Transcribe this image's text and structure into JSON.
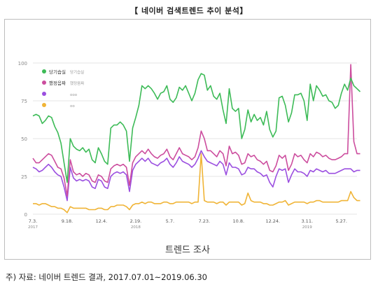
{
  "figure": {
    "title": "【 네이버 검색트렌드 추이 분석】",
    "caption": "트렌드 조사",
    "source": "주) 자료: 네이버 트렌드 결과, 2017.07.01~2019.06.30"
  },
  "colors": {
    "series1": "#3dbb57",
    "series2": "#cc4d9e",
    "series3": "#9b4fe0",
    "series4": "#f0b436",
    "grid": "#e6e6e6",
    "axis_text": "#888888"
  },
  "chart_data": {
    "type": "line",
    "title": "",
    "xlabel": "",
    "ylabel": "",
    "ylim": [
      0,
      100
    ],
    "yticks": [
      0,
      25,
      50,
      75,
      100
    ],
    "grid": "horizontal",
    "legend_position": "top-left",
    "x_ticks": [
      {
        "label": "7.3.",
        "sub": "2017",
        "week": 0
      },
      {
        "label": "9.18.",
        "sub": "",
        "week": 11
      },
      {
        "label": "12.4.",
        "sub": "",
        "week": 22
      },
      {
        "label": "2.19.",
        "sub": "2018",
        "week": 33
      },
      {
        "label": "5.7.",
        "sub": "",
        "week": 44
      },
      {
        "label": "7.23.",
        "sub": "",
        "week": 55
      },
      {
        "label": "10.8.",
        "sub": "",
        "week": 66
      },
      {
        "label": "12.24.",
        "sub": "",
        "week": 77
      },
      {
        "label": "3.11.",
        "sub": "2019",
        "week": 88
      },
      {
        "label": "5.27.",
        "sub": "",
        "week": 99
      }
    ],
    "x_range": [
      0,
      104
    ],
    "series": [
      {
        "name": "당기습실",
        "values": [
          65,
          66,
          65,
          60,
          62,
          65,
          64,
          58,
          54,
          47,
          34,
          21,
          50,
          45,
          43,
          42,
          44,
          41,
          43,
          36,
          34,
          44,
          40,
          35,
          33,
          57,
          59,
          59,
          61,
          59,
          55,
          35,
          57,
          64,
          72,
          85,
          83,
          85,
          83,
          80,
          76,
          80,
          81,
          85,
          76,
          74,
          77,
          84,
          82,
          85,
          80,
          75,
          80,
          89,
          93,
          92,
          82,
          85,
          78,
          76,
          80,
          69,
          60,
          83,
          70,
          68,
          70,
          50,
          56,
          69,
          61,
          66,
          62,
          64,
          59,
          68,
          56,
          51,
          55,
          77,
          78,
          72,
          61,
          67,
          79,
          79,
          80,
          75,
          62,
          86,
          75,
          85,
          82,
          78,
          79,
          75,
          74,
          70,
          72,
          80,
          86,
          82,
          90,
          85,
          83,
          81
        ],
        "color_key": "series1"
      },
      {
        "name": "했정음짜",
        "values": [
          37,
          34,
          34,
          36,
          38,
          40,
          39,
          35,
          31,
          30,
          24,
          12,
          36,
          28,
          26,
          27,
          25,
          27,
          26,
          22,
          21,
          26,
          25,
          22,
          21,
          30,
          32,
          33,
          32,
          33,
          31,
          19,
          34,
          38,
          40,
          42,
          40,
          43,
          40,
          38,
          37,
          39,
          40,
          43,
          38,
          36,
          40,
          44,
          40,
          39,
          38,
          36,
          38,
          44,
          55,
          50,
          42,
          42,
          40,
          38,
          42,
          40,
          32,
          45,
          40,
          41,
          39,
          33,
          34,
          40,
          38,
          39,
          36,
          35,
          33,
          35,
          29,
          28,
          32,
          39,
          37,
          39,
          29,
          33,
          40,
          38,
          39,
          36,
          34,
          40,
          38,
          41,
          40,
          38,
          39,
          37,
          36,
          36,
          37,
          38,
          40,
          40,
          99,
          48,
          40,
          40
        ],
        "color_key": "series2"
      },
      {
        "name": "",
        "values": [
          31,
          30,
          28,
          29,
          31,
          33,
          31,
          28,
          26,
          25,
          18,
          9,
          31,
          24,
          22,
          23,
          22,
          23,
          22,
          18,
          17,
          23,
          22,
          18,
          17,
          25,
          27,
          28,
          27,
          28,
          26,
          15,
          29,
          33,
          35,
          37,
          35,
          37,
          34,
          33,
          32,
          34,
          35,
          37,
          33,
          31,
          34,
          38,
          35,
          34,
          33,
          31,
          33,
          37,
          42,
          38,
          35,
          34,
          33,
          32,
          35,
          33,
          26,
          34,
          31,
          31,
          30,
          26,
          27,
          31,
          30,
          30,
          28,
          27,
          25,
          26,
          21,
          18,
          25,
          30,
          29,
          30,
          21,
          26,
          30,
          28,
          28,
          27,
          25,
          29,
          28,
          30,
          29,
          28,
          29,
          27,
          27,
          27,
          28,
          29,
          30,
          30,
          30,
          28,
          29,
          29
        ],
        "color_key": "series3"
      },
      {
        "name": "",
        "values": [
          7,
          7,
          6,
          7,
          7,
          6,
          5,
          5,
          4,
          4,
          3,
          1,
          5,
          4,
          4,
          4,
          4,
          4,
          3,
          3,
          3,
          4,
          4,
          3,
          3,
          5,
          5,
          6,
          6,
          6,
          5,
          3,
          6,
          7,
          7,
          8,
          7,
          8,
          8,
          7,
          7,
          7,
          8,
          8,
          7,
          7,
          8,
          8,
          8,
          8,
          8,
          7,
          8,
          8,
          40,
          9,
          8,
          8,
          8,
          7,
          8,
          8,
          6,
          8,
          8,
          8,
          8,
          6,
          7,
          14,
          9,
          8,
          8,
          8,
          7,
          7,
          6,
          6,
          7,
          8,
          8,
          9,
          6,
          7,
          8,
          8,
          8,
          8,
          7,
          8,
          8,
          9,
          9,
          8,
          8,
          8,
          8,
          8,
          8,
          9,
          9,
          9,
          15,
          11,
          9,
          9
        ],
        "color_key": "series4"
      }
    ],
    "legend_extra": [
      "당기습실",
      "했정음짜",
      "ooo",
      "oo"
    ]
  }
}
